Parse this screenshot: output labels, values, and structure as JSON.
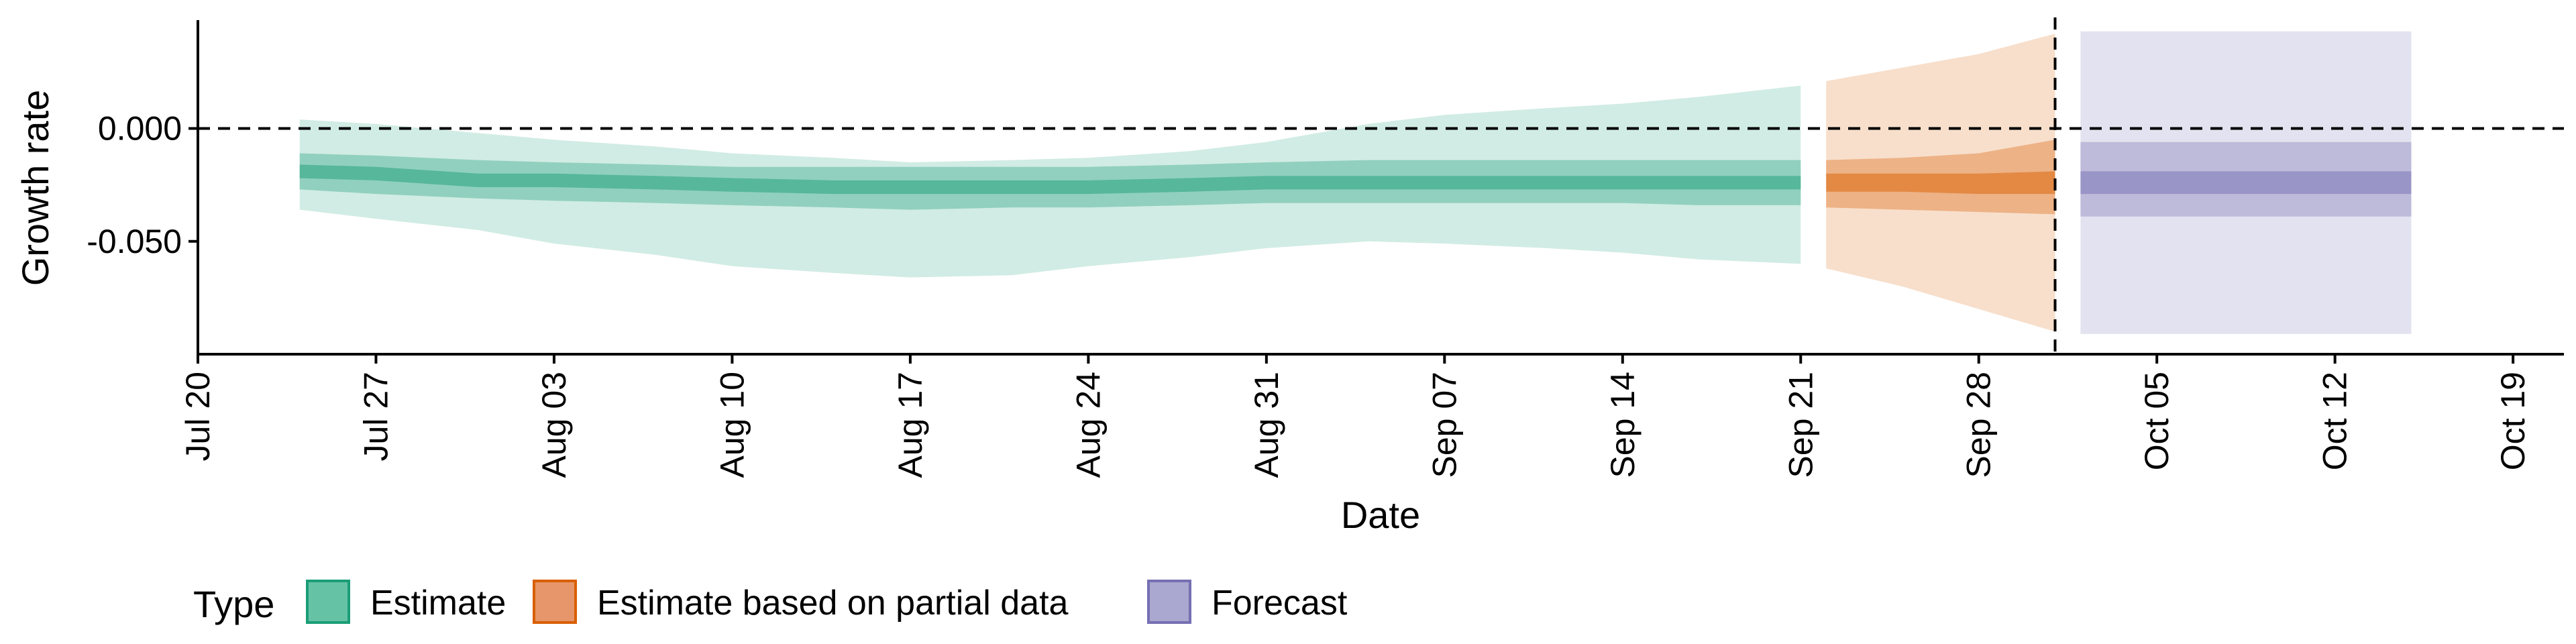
{
  "chart_data": {
    "type": "area",
    "xlabel": "Date",
    "ylabel": "Growth rate",
    "x_range": [
      "2023-07-20",
      "2023-10-21"
    ],
    "ylim": [
      -0.1,
      0.048
    ],
    "y_ticks": [
      {
        "value": 0.0,
        "label": "0.000"
      },
      {
        "value": -0.05,
        "label": "-0.050"
      }
    ],
    "x_ticks": [
      {
        "date": "2023-07-20",
        "label": "Jul 20"
      },
      {
        "date": "2023-07-27",
        "label": "Jul 27"
      },
      {
        "date": "2023-08-03",
        "label": "Aug 03"
      },
      {
        "date": "2023-08-10",
        "label": "Aug 10"
      },
      {
        "date": "2023-08-17",
        "label": "Aug 17"
      },
      {
        "date": "2023-08-24",
        "label": "Aug 24"
      },
      {
        "date": "2023-08-31",
        "label": "Aug 31"
      },
      {
        "date": "2023-09-07",
        "label": "Sep 07"
      },
      {
        "date": "2023-09-14",
        "label": "Sep 14"
      },
      {
        "date": "2023-09-21",
        "label": "Sep 21"
      },
      {
        "date": "2023-09-28",
        "label": "Sep 28"
      },
      {
        "date": "2023-10-05",
        "label": "Oct 05"
      },
      {
        "date": "2023-10-12",
        "label": "Oct 12"
      },
      {
        "date": "2023-10-19",
        "label": "Oct 19"
      }
    ],
    "reference_lines": [
      {
        "axis": "y",
        "value": 0.0,
        "style": "dashed"
      },
      {
        "axis": "x",
        "date": "2023-10-01",
        "style": "dashed"
      }
    ],
    "grid": false,
    "legend": {
      "title": "Type",
      "position": "bottom-left",
      "entries": [
        {
          "label": "Estimate",
          "fill": "#66c2a5",
          "border": "#1b9e77"
        },
        {
          "label": "Estimate based on partial data",
          "fill": "#e7956a",
          "border": "#d95f02"
        },
        {
          "label": "Forecast",
          "fill": "#aaa7d0",
          "border": "#7570b3"
        }
      ]
    },
    "series": [
      {
        "name": "Estimate",
        "color": "#1b9e77",
        "points": [
          {
            "x": "2023-07-24",
            "median": -0.019,
            "lo50": -0.022,
            "hi50": -0.016,
            "lo90": -0.027,
            "hi90": -0.011,
            "lo95": -0.036,
            "hi95": 0.004
          },
          {
            "x": "2023-07-27",
            "median": -0.02,
            "lo50": -0.023,
            "hi50": -0.017,
            "lo90": -0.029,
            "hi90": -0.012,
            "lo95": -0.04,
            "hi95": 0.002
          },
          {
            "x": "2023-07-31",
            "median": -0.023,
            "lo50": -0.026,
            "hi50": -0.02,
            "lo90": -0.031,
            "hi90": -0.014,
            "lo95": -0.045,
            "hi95": -0.002
          },
          {
            "x": "2023-08-03",
            "median": -0.023,
            "lo50": -0.026,
            "hi50": -0.02,
            "lo90": -0.032,
            "hi90": -0.015,
            "lo95": -0.051,
            "hi95": -0.005
          },
          {
            "x": "2023-08-07",
            "median": -0.024,
            "lo50": -0.027,
            "hi50": -0.021,
            "lo90": -0.033,
            "hi90": -0.016,
            "lo95": -0.056,
            "hi95": -0.008
          },
          {
            "x": "2023-08-10",
            "median": -0.025,
            "lo50": -0.028,
            "hi50": -0.022,
            "lo90": -0.034,
            "hi90": -0.017,
            "lo95": -0.061,
            "hi95": -0.011
          },
          {
            "x": "2023-08-14",
            "median": -0.026,
            "lo50": -0.029,
            "hi50": -0.023,
            "lo90": -0.035,
            "hi90": -0.017,
            "lo95": -0.064,
            "hi95": -0.013
          },
          {
            "x": "2023-08-17",
            "median": -0.026,
            "lo50": -0.029,
            "hi50": -0.023,
            "lo90": -0.036,
            "hi90": -0.017,
            "lo95": -0.066,
            "hi95": -0.015
          },
          {
            "x": "2023-08-21",
            "median": -0.026,
            "lo50": -0.029,
            "hi50": -0.023,
            "lo90": -0.035,
            "hi90": -0.017,
            "lo95": -0.065,
            "hi95": -0.014
          },
          {
            "x": "2023-08-24",
            "median": -0.026,
            "lo50": -0.029,
            "hi50": -0.023,
            "lo90": -0.035,
            "hi90": -0.017,
            "lo95": -0.061,
            "hi95": -0.013
          },
          {
            "x": "2023-08-28",
            "median": -0.025,
            "lo50": -0.028,
            "hi50": -0.022,
            "lo90": -0.034,
            "hi90": -0.016,
            "lo95": -0.057,
            "hi95": -0.01
          },
          {
            "x": "2023-08-31",
            "median": -0.024,
            "lo50": -0.027,
            "hi50": -0.021,
            "lo90": -0.033,
            "hi90": -0.015,
            "lo95": -0.053,
            "hi95": -0.006
          },
          {
            "x": "2023-09-04",
            "median": -0.024,
            "lo50": -0.027,
            "hi50": -0.021,
            "lo90": -0.033,
            "hi90": -0.014,
            "lo95": -0.05,
            "hi95": 0.002
          },
          {
            "x": "2023-09-07",
            "median": -0.024,
            "lo50": -0.027,
            "hi50": -0.021,
            "lo90": -0.033,
            "hi90": -0.014,
            "lo95": -0.051,
            "hi95": 0.006
          },
          {
            "x": "2023-09-11",
            "median": -0.024,
            "lo50": -0.027,
            "hi50": -0.021,
            "lo90": -0.033,
            "hi90": -0.014,
            "lo95": -0.053,
            "hi95": 0.009
          },
          {
            "x": "2023-09-14",
            "median": -0.024,
            "lo50": -0.027,
            "hi50": -0.021,
            "lo90": -0.033,
            "hi90": -0.014,
            "lo95": -0.055,
            "hi95": 0.011
          },
          {
            "x": "2023-09-17",
            "median": -0.024,
            "lo50": -0.027,
            "hi50": -0.021,
            "lo90": -0.034,
            "hi90": -0.014,
            "lo95": -0.058,
            "hi95": 0.014
          },
          {
            "x": "2023-09-21",
            "median": -0.024,
            "lo50": -0.027,
            "hi50": -0.021,
            "lo90": -0.034,
            "hi90": -0.014,
            "lo95": -0.06,
            "hi95": 0.019
          }
        ]
      },
      {
        "name": "Estimate based on partial data",
        "color": "#d95f02",
        "points": [
          {
            "x": "2023-09-22",
            "median": -0.024,
            "lo50": -0.028,
            "hi50": -0.02,
            "lo90": -0.035,
            "hi90": -0.014,
            "lo95": -0.062,
            "hi95": 0.021
          },
          {
            "x": "2023-09-25",
            "median": -0.024,
            "lo50": -0.028,
            "hi50": -0.02,
            "lo90": -0.036,
            "hi90": -0.013,
            "lo95": -0.07,
            "hi95": 0.027
          },
          {
            "x": "2023-09-28",
            "median": -0.024,
            "lo50": -0.029,
            "hi50": -0.02,
            "lo90": -0.037,
            "hi90": -0.011,
            "lo95": -0.08,
            "hi95": 0.033
          },
          {
            "x": "2023-10-01",
            "median": -0.024,
            "lo50": -0.029,
            "hi50": -0.019,
            "lo90": -0.038,
            "hi90": -0.005,
            "lo95": -0.09,
            "hi95": 0.042
          }
        ]
      },
      {
        "name": "Forecast",
        "color": "#7570b3",
        "points": [
          {
            "x": "2023-10-02",
            "median": -0.024,
            "lo50": -0.029,
            "hi50": -0.019,
            "lo90": -0.039,
            "hi90": -0.006,
            "lo95": -0.091,
            "hi95": 0.043
          },
          {
            "x": "2023-10-15",
            "median": -0.024,
            "lo50": -0.029,
            "hi50": -0.019,
            "lo90": -0.039,
            "hi90": -0.006,
            "lo95": -0.091,
            "hi95": 0.043
          }
        ]
      }
    ]
  }
}
